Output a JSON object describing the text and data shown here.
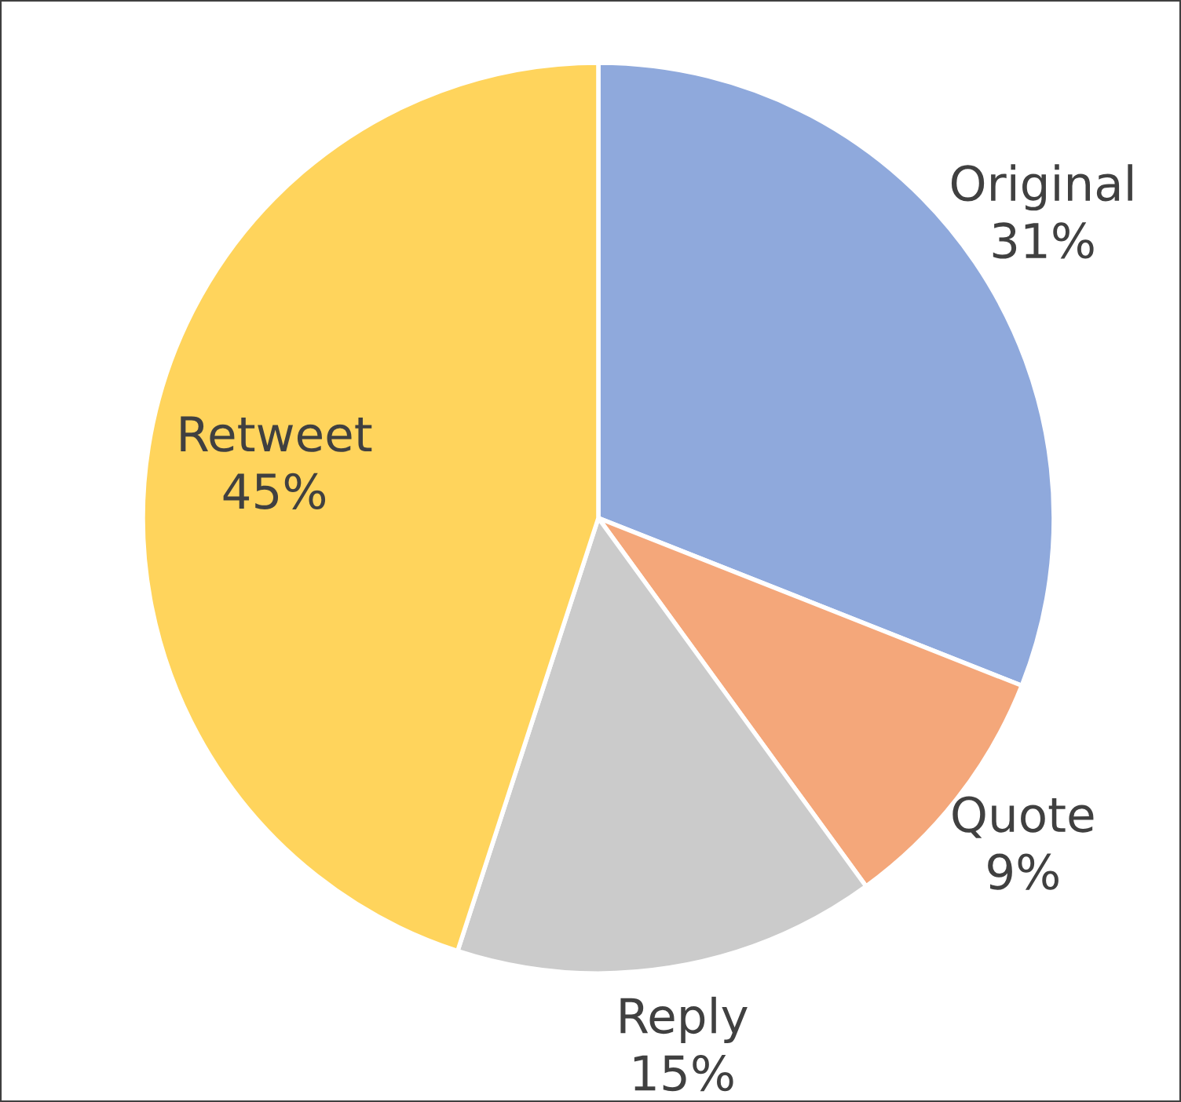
{
  "chart_data": {
    "type": "pie",
    "categories": [
      "Original",
      "Quote",
      "Reply",
      "Retweet"
    ],
    "values": [
      31,
      9,
      15,
      45
    ],
    "value_labels": [
      "31%",
      "9%",
      "15%",
      "45%"
    ],
    "colors": [
      "#8fa9dc",
      "#f4a77a",
      "#cbcbcb",
      "#ffd45c"
    ],
    "legend": false
  }
}
